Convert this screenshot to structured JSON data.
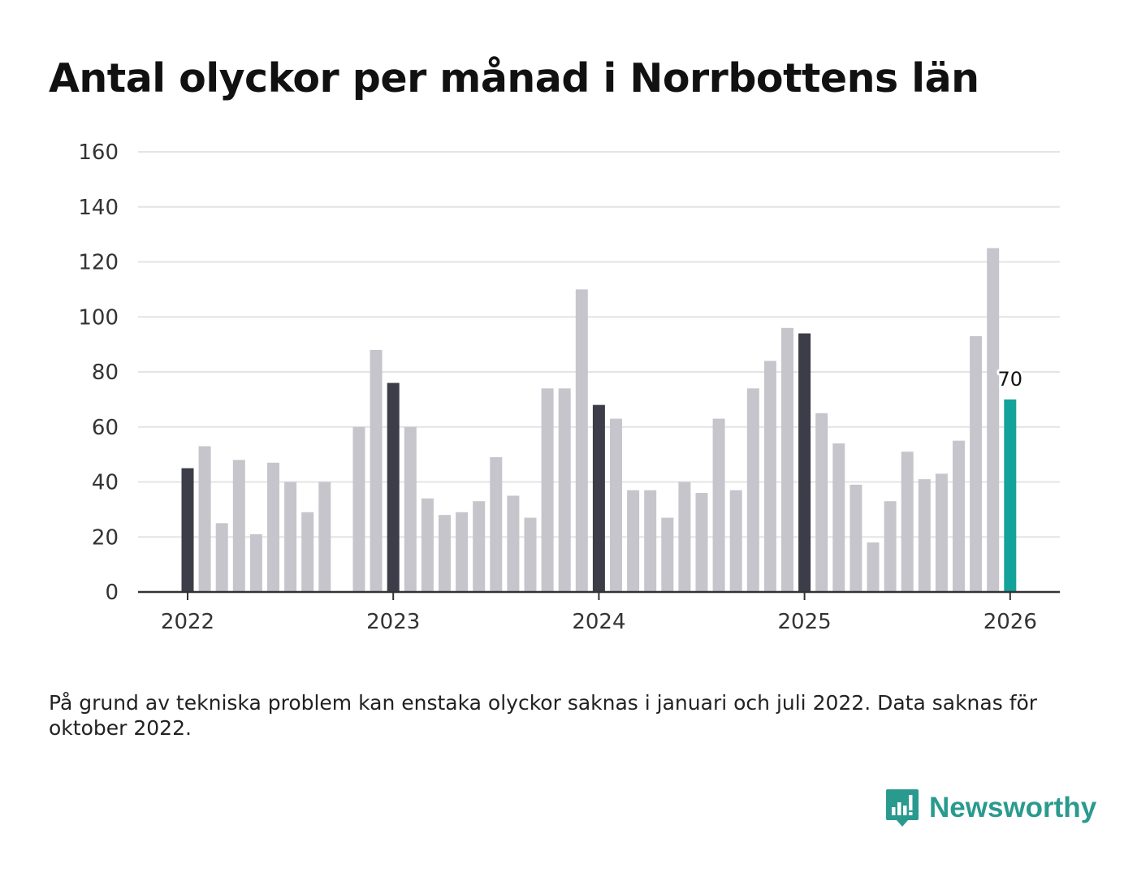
{
  "chart_data": {
    "type": "bar",
    "title": "Antal olyckor per månad i Norrbottens län",
    "ylim": [
      0,
      160
    ],
    "y_ticks": [
      0,
      20,
      40,
      60,
      80,
      100,
      120,
      140,
      160
    ],
    "x_tick_labels": [
      "2022",
      "2023",
      "2024",
      "2025",
      "2026"
    ],
    "x_tick_month_index": [
      0,
      12,
      24,
      36,
      48
    ],
    "values": [
      45,
      53,
      25,
      48,
      21,
      47,
      40,
      29,
      40,
      null,
      60,
      88,
      76,
      60,
      34,
      28,
      29,
      33,
      49,
      35,
      27,
      74,
      74,
      110,
      68,
      63,
      37,
      37,
      27,
      40,
      36,
      63,
      37,
      74,
      84,
      96,
      94,
      65,
      54,
      39,
      18,
      33,
      51,
      41,
      43,
      55,
      93,
      125,
      70
    ],
    "annotations": [
      {
        "month_index": 48,
        "label": "70"
      }
    ],
    "colors": {
      "default": "#c6c5cc",
      "january": "#3d3d49",
      "latest": "#13a39a",
      "grid": "#e4e4e4",
      "axis": "#333333"
    }
  },
  "footnote": "På grund av tekniska problem kan enstaka olyckor saknas i januari och juli 2022. Data saknas för oktober 2022.",
  "brand": {
    "name": "Newsworthy",
    "icon": "newsworthy-logo-icon",
    "color": "#2a9a8f"
  }
}
